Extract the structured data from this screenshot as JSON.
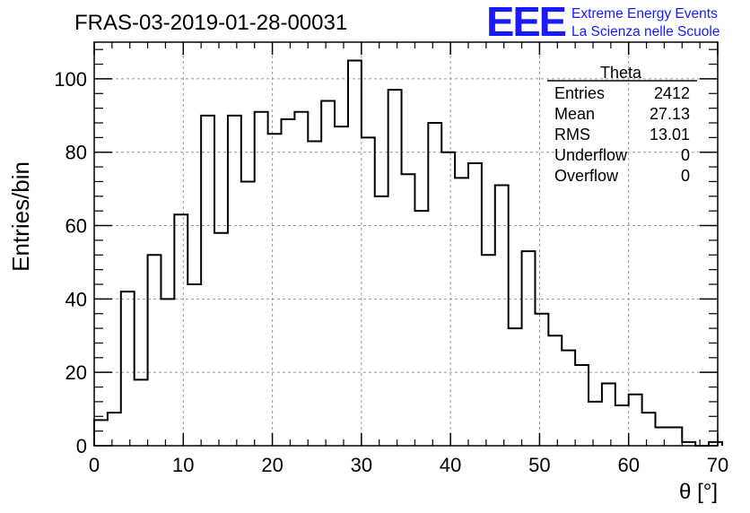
{
  "header": {
    "run_title": "FRAS-03-2019-01-28-00031",
    "logo_mark": "EEE",
    "logo_line1": "Extreme Energy Events",
    "logo_line2": "La Scienza nelle Scuole",
    "logo_color": "#1a1aff"
  },
  "stats_box": {
    "title": "Theta",
    "rows": [
      {
        "label": "Entries",
        "value": "2412"
      },
      {
        "label": "Mean",
        "value": "27.13"
      },
      {
        "label": "RMS",
        "value": "13.01"
      },
      {
        "label": "Underflow",
        "value": "0"
      },
      {
        "label": "Overflow",
        "value": "0"
      }
    ]
  },
  "chart_data": {
    "type": "histogram",
    "xlabel": "θ [°]",
    "ylabel": "Entries/bin",
    "xlim": [
      0,
      70
    ],
    "ylim": [
      0,
      110
    ],
    "bin_width": 1.5,
    "bin_start": 0,
    "x_ticks": [
      "0",
      "10",
      "20",
      "30",
      "40",
      "50",
      "60",
      "70"
    ],
    "y_ticks": [
      "0",
      "20",
      "40",
      "60",
      "80",
      "100"
    ],
    "grid": true,
    "line_color": "#000000",
    "values": [
      7,
      9,
      42,
      18,
      52,
      40,
      63,
      44,
      90,
      58,
      90,
      72,
      91,
      85,
      89,
      91,
      83,
      94,
      87,
      105,
      84,
      68,
      97,
      74,
      64,
      88,
      80,
      73,
      77,
      52,
      71,
      32,
      53,
      36,
      30,
      26,
      22,
      12,
      17,
      11,
      14,
      9,
      5,
      5,
      1,
      0,
      1
    ]
  }
}
